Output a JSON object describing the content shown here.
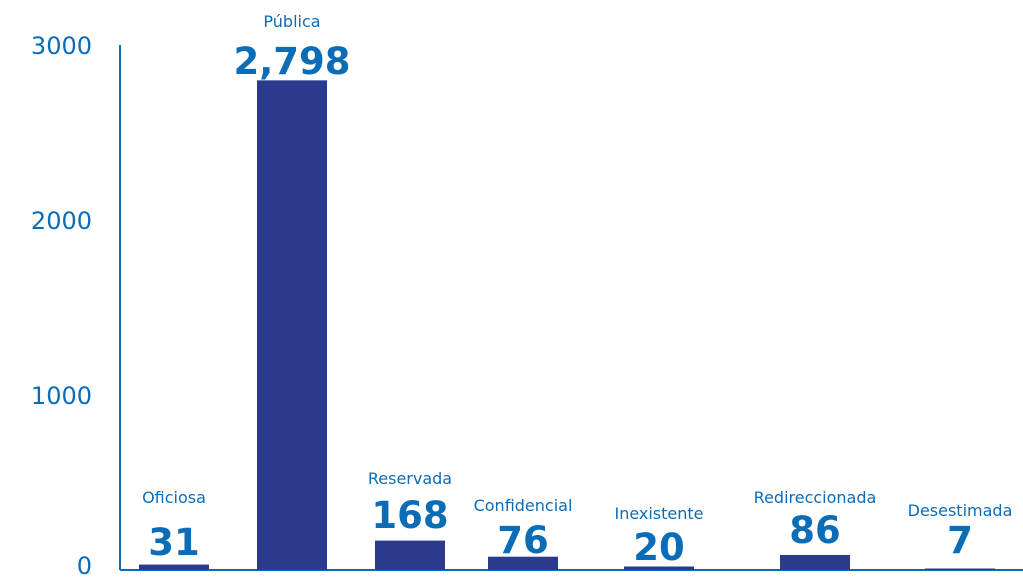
{
  "chart_data": {
    "type": "bar",
    "categories": [
      "Oficiosa",
      "Pública",
      "Reservada",
      "Confidencial",
      "Inexistente",
      "Redireccionada",
      "Desestimada"
    ],
    "values": [
      31,
      2798,
      168,
      76,
      20,
      86,
      7
    ],
    "value_labels": [
      "31",
      "2,798",
      "168",
      "76",
      "20",
      "86",
      "7"
    ],
    "yticks": [
      "0",
      "1000",
      "2000",
      "3000"
    ],
    "ylim": [
      0,
      3000
    ],
    "title": "",
    "xlabel": "",
    "ylabel": "",
    "grid": false,
    "colors": {
      "bar": "#2b3a8c",
      "text": "#0b6db8",
      "axis": "#0b6db8"
    }
  }
}
